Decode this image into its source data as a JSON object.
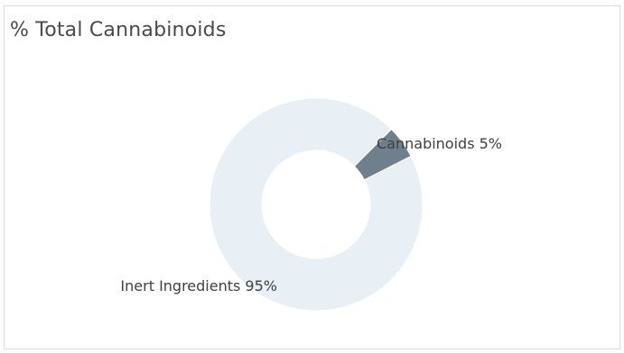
{
  "chart_data": {
    "type": "pie",
    "title": "% Total Cannabinoids",
    "donut": true,
    "slices": [
      {
        "label": "Cannabinoids 5%",
        "value": 5,
        "color": "#6f7f8c"
      },
      {
        "label": "Inert Ingredients 95%",
        "value": 95,
        "color": "#e8f0f5"
      }
    ]
  }
}
